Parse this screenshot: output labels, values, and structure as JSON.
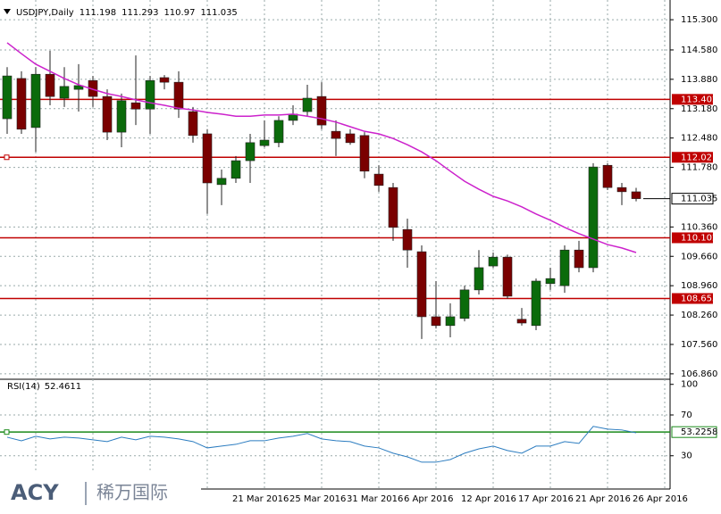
{
  "chart_data": [
    {
      "type": "candlestick",
      "title": "USDJPY,Daily",
      "categories": [
        null,
        null,
        null,
        null,
        null,
        null,
        null,
        null,
        null,
        null,
        null,
        null,
        null,
        null,
        null,
        null,
        "21 Mar 2016",
        null,
        null,
        null,
        "25 Mar 2016",
        null,
        null,
        null,
        "31 Mar 2016",
        null,
        null,
        null,
        "6 Apr 2016",
        null,
        null,
        null,
        "12 Apr 2016",
        null,
        null,
        null,
        "17 Apr 2016",
        null,
        null,
        null,
        "21 Apr 2016",
        null,
        null,
        null,
        "26 Apr 2016"
      ],
      "open": [
        112.94,
        113.9,
        112.73,
        114.0,
        113.43,
        113.64,
        113.85,
        113.47,
        112.62,
        113.32,
        113.17,
        113.92,
        113.81,
        113.11,
        112.58,
        111.37,
        111.52,
        111.94,
        112.3,
        112.37,
        112.9,
        113.11,
        113.47,
        112.64,
        112.58,
        112.54,
        111.62,
        111.3,
        110.3,
        109.77,
        108.22,
        108.01,
        108.18,
        108.86,
        109.43,
        109.64,
        108.16,
        108.01,
        109.01,
        108.96,
        109.81,
        109.39,
        111.83,
        111.3,
        111.198
      ],
      "high": [
        114.17,
        114.07,
        114.17,
        114.56,
        114.17,
        114.24,
        113.96,
        113.64,
        113.54,
        114.45,
        113.96,
        113.98,
        114.07,
        113.22,
        112.69,
        111.73,
        112.05,
        112.58,
        112.9,
        113.0,
        113.26,
        113.75,
        113.81,
        112.9,
        112.69,
        112.62,
        111.83,
        111.41,
        110.56,
        109.92,
        109.07,
        108.54,
        108.96,
        109.81,
        109.75,
        109.7,
        108.43,
        109.13,
        109.39,
        109.92,
        110.03,
        111.88,
        111.88,
        111.41,
        111.293
      ],
      "low": [
        112.58,
        112.58,
        112.15,
        113.26,
        113.22,
        113.11,
        113.22,
        112.43,
        112.26,
        112.79,
        112.58,
        113.64,
        112.96,
        112.37,
        110.67,
        110.88,
        111.41,
        111.41,
        112.26,
        112.26,
        112.79,
        113.0,
        112.69,
        112.05,
        112.32,
        111.52,
        111.2,
        110.03,
        109.39,
        107.69,
        107.94,
        107.73,
        108.11,
        108.75,
        109.39,
        108.65,
        108.01,
        107.9,
        108.86,
        108.79,
        109.28,
        109.28,
        111.24,
        110.88,
        110.97
      ],
      "close": [
        113.96,
        112.69,
        114.0,
        113.47,
        113.71,
        113.73,
        113.47,
        112.62,
        113.37,
        113.17,
        113.85,
        113.81,
        113.17,
        112.54,
        111.41,
        111.52,
        111.94,
        112.37,
        112.43,
        112.9,
        113.05,
        113.43,
        112.79,
        112.47,
        112.37,
        111.69,
        111.35,
        110.35,
        109.81,
        108.22,
        108.01,
        108.22,
        108.86,
        109.39,
        109.64,
        108.71,
        108.07,
        109.07,
        109.13,
        109.81,
        109.39,
        111.79,
        111.3,
        111.2,
        111.035
      ],
      "up_color": "#0b6b0b",
      "down_color": "#7a0000",
      "ma": {
        "color": "#cc22cc",
        "values": [
          114.75,
          114.49,
          114.24,
          114.07,
          113.9,
          113.75,
          113.64,
          113.54,
          113.47,
          113.39,
          113.32,
          113.26,
          113.19,
          113.15,
          113.09,
          113.05,
          113.0,
          113.0,
          113.03,
          113.03,
          113.05,
          113.0,
          112.94,
          112.86,
          112.75,
          112.64,
          112.58,
          112.47,
          112.32,
          112.15,
          111.94,
          111.69,
          111.45,
          111.26,
          111.09,
          110.98,
          110.84,
          110.67,
          110.52,
          110.35,
          110.2,
          110.07,
          109.94,
          109.86,
          109.75
        ]
      },
      "levels": [
        113.402,
        112.021,
        110.102,
        108.655
      ],
      "level_color": "#c00000",
      "ylim": [
        106.73,
        115.6
      ],
      "yticks": [
        {
          "value": 115.3,
          "label": "115.300"
        },
        {
          "value": 114.58,
          "label": "114.580"
        },
        {
          "value": 113.88,
          "label": "113.880"
        },
        {
          "value": 113.18,
          "label": "113.180"
        },
        {
          "value": 112.48,
          "label": "112.480"
        },
        {
          "value": 111.78,
          "label": "111.780"
        },
        {
          "value": 110.36,
          "label": "110.360"
        },
        {
          "value": 109.66,
          "label": "109.660"
        },
        {
          "value": 108.96,
          "label": "108.960"
        },
        {
          "value": 108.26,
          "label": "108.260"
        },
        {
          "value": 107.56,
          "label": "107.560"
        },
        {
          "value": 106.86,
          "label": "106.860"
        }
      ],
      "grid": true
    },
    {
      "type": "line",
      "title": "RSI(14)",
      "value": 52.4611,
      "color": "#2b7cc0",
      "values": [
        48.2,
        44.7,
        49.1,
        46.5,
        48.2,
        47.4,
        45.6,
        43.9,
        48.2,
        45.6,
        49.1,
        48.2,
        46.5,
        43.9,
        37.7,
        39.5,
        41.2,
        44.7,
        44.7,
        47.4,
        49.1,
        51.8,
        46.5,
        44.7,
        43.9,
        39.5,
        37.7,
        32.5,
        28.9,
        23.7,
        23.7,
        26.3,
        32.5,
        36.8,
        39.5,
        35.1,
        32.5,
        39.5,
        39.5,
        43.9,
        42.1,
        58.8,
        56.1,
        55.3,
        52.5
      ],
      "level": 53.2258,
      "level_color": "#1a8a1a",
      "ylim": [
        -2.6,
        105
      ],
      "yticks": [
        100,
        70,
        30
      ],
      "grid": true
    }
  ],
  "logo": {
    "brand": "ACY",
    "name": "稀万国际"
  }
}
